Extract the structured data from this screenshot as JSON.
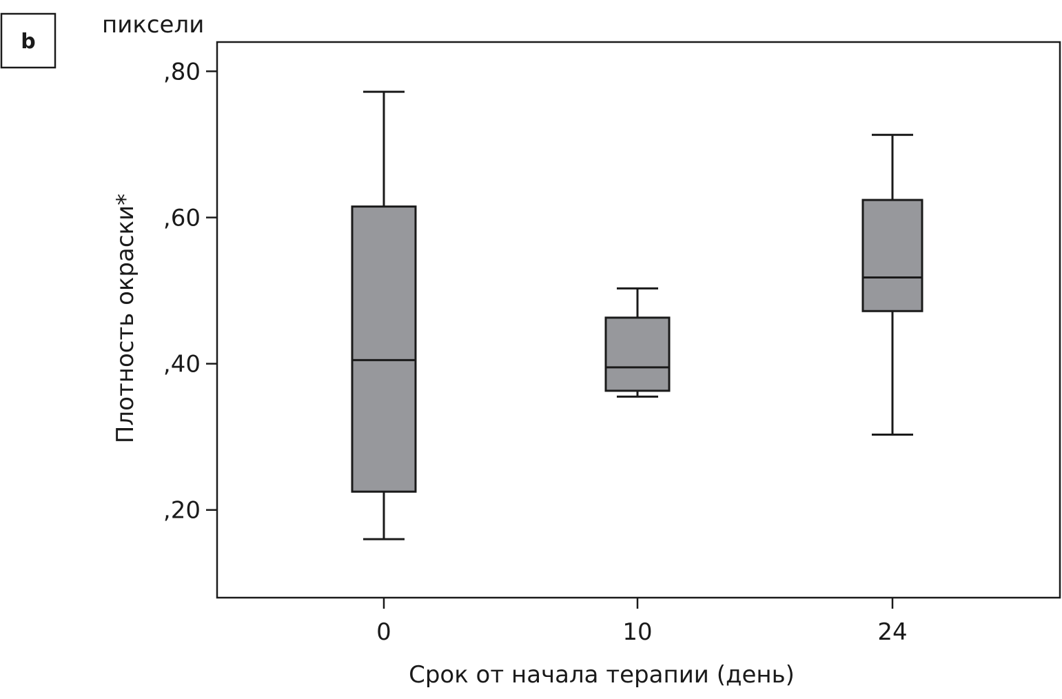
{
  "panel_label": "b",
  "chart_data": {
    "type": "box",
    "unit_label": "пиксели",
    "ylabel": "Плотность окраски*",
    "xlabel": "Срок от начала терапии (день)",
    "ylim": [
      0.08,
      0.84
    ],
    "y_ticks": [
      {
        "value": 0.2,
        "label": ",20"
      },
      {
        "value": 0.4,
        "label": ",40"
      },
      {
        "value": 0.6,
        "label": ",60"
      },
      {
        "value": 0.8,
        "label": ",80"
      }
    ],
    "categories": [
      "0",
      "10",
      "24"
    ],
    "boxes": [
      {
        "category": "0",
        "min": 0.16,
        "q1": 0.225,
        "median": 0.405,
        "q3": 0.615,
        "max": 0.772
      },
      {
        "category": "10",
        "min": 0.355,
        "q1": 0.363,
        "median": 0.395,
        "q3": 0.463,
        "max": 0.503
      },
      {
        "category": "24",
        "min": 0.303,
        "q1": 0.472,
        "median": 0.518,
        "q3": 0.624,
        "max": 0.713
      }
    ],
    "grid": false,
    "legend": "none",
    "colors": {
      "box_fill": "#97989c",
      "stroke": "#1a1a1a"
    }
  }
}
